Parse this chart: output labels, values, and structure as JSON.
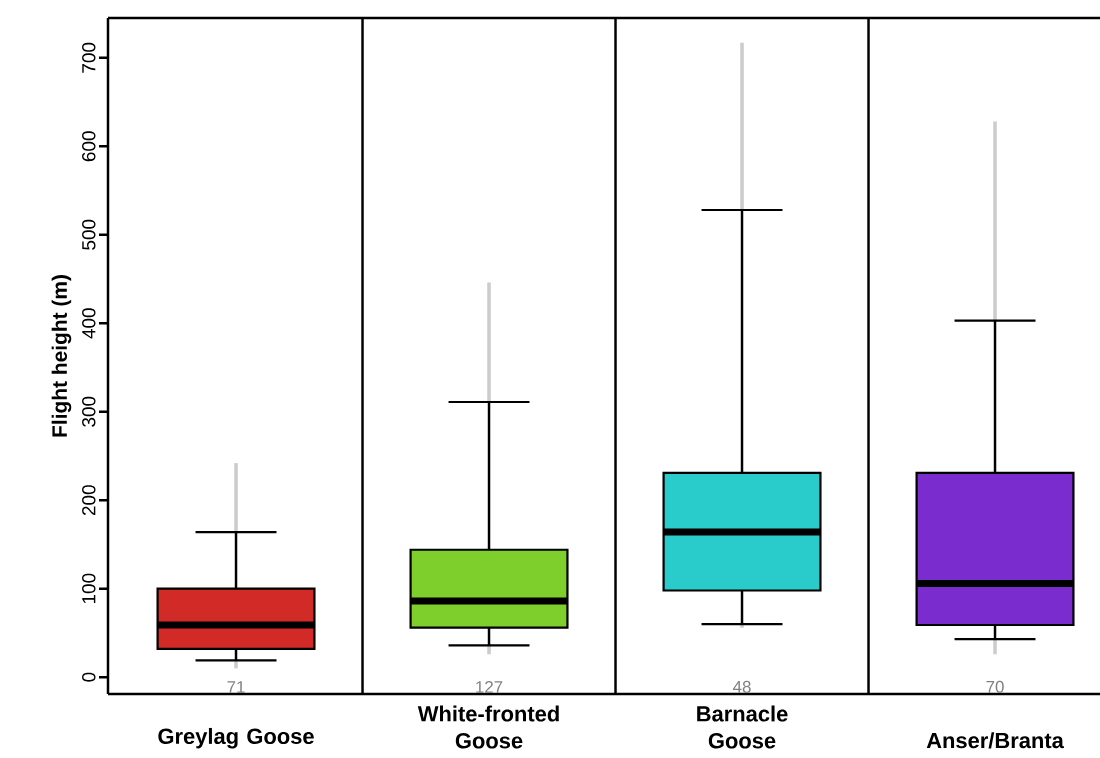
{
  "chart_data": {
    "type": "box",
    "ylabel": "Flight height (m)",
    "categories": [
      "Greylag Goose",
      "White-fronted Goose",
      "Barnacle Goose",
      "Anser/Branta"
    ],
    "ylim": [
      -19,
      745
    ],
    "yticks": [
      0,
      100,
      200,
      300,
      400,
      500,
      600,
      700
    ],
    "series": [
      {
        "type": "bar",
        "color": "#cccccc",
        "base": [
          10,
          26,
          56,
          26
        ],
        "values": [
          232,
          420,
          661,
          602
        ]
      },
      {
        "type": "box",
        "colors": [
          "#d22b27",
          "#7ecf2b",
          "#29cbcb",
          "#7b2ccf"
        ],
        "boxes": [
          {
            "low": 19,
            "q1": 32,
            "median": 59,
            "q3": 100,
            "high": 164
          },
          {
            "low": 36,
            "q1": 56,
            "median": 86,
            "q3": 144,
            "high": 311
          },
          {
            "low": 60,
            "q1": 98,
            "median": 164,
            "q3": 231,
            "high": 528
          },
          {
            "low": 43,
            "q1": 59,
            "median": 106,
            "q3": 231,
            "high": 403
          }
        ]
      }
    ],
    "annotations": [
      "71",
      "127",
      "48",
      "70"
    ]
  }
}
